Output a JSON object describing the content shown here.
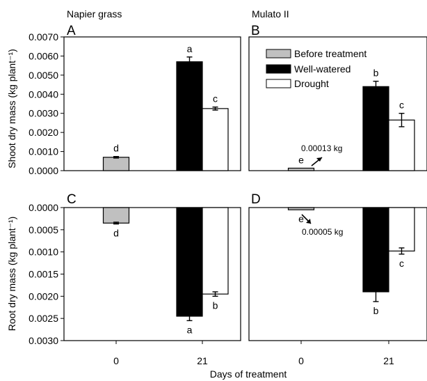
{
  "figure": {
    "x_axis_label": "Days of treatment",
    "y_axis_top_label": "Shoot dry mass (kg plant⁻¹)",
    "y_axis_bottom_label": "Root dry mass (kg plant⁻¹)",
    "column_titles": [
      "Napier grass",
      "Mulato II"
    ],
    "panel_letters": [
      "A",
      "B",
      "C",
      "D"
    ],
    "x_tick_labels": [
      "0",
      "21"
    ],
    "legend": [
      {
        "label": "Before treatment",
        "color": "#c0c0c0"
      },
      {
        "label": "Well-watered",
        "color": "#000000"
      },
      {
        "label": "Drought",
        "color": "#ffffff"
      }
    ],
    "annotation_b": "0.00013 kg",
    "annotation_d": "0.00005 kg"
  },
  "chart_data": [
    {
      "panel": "A",
      "type": "bar",
      "title": "Napier grass",
      "ylabel": "Shoot dry mass (kg plant⁻¹)",
      "xlabel": "",
      "ylim": [
        0,
        0.007
      ],
      "yticks": [
        "0.0000",
        "0.0010",
        "0.0020",
        "0.0030",
        "0.0040",
        "0.0050",
        "0.0060",
        "0.0070"
      ],
      "bars": [
        {
          "day": "0",
          "series": "Before treatment",
          "value": 0.0007,
          "error": 4e-05,
          "letter": "d"
        },
        {
          "day": "21",
          "series": "Well-watered",
          "value": 0.0057,
          "error": 0.00025,
          "letter": "a"
        },
        {
          "day": "21",
          "series": "Drought",
          "value": 0.00325,
          "error": 8e-05,
          "letter": "c"
        }
      ]
    },
    {
      "panel": "B",
      "type": "bar",
      "title": "Mulato II",
      "ylabel": "",
      "xlabel": "",
      "ylim": [
        0,
        0.007
      ],
      "bars": [
        {
          "day": "0",
          "series": "Before treatment",
          "value": 0.00013,
          "error": 0.0,
          "letter": "e"
        },
        {
          "day": "21",
          "series": "Well-watered",
          "value": 0.0044,
          "error": 0.00028,
          "letter": "b"
        },
        {
          "day": "21",
          "series": "Drought",
          "value": 0.00265,
          "error": 0.00035,
          "letter": "c"
        }
      ]
    },
    {
      "panel": "C",
      "type": "bar",
      "title": "",
      "ylabel": "Root dry mass (kg plant⁻¹)",
      "xlabel": "Days of treatment",
      "ylim": [
        0,
        0.003
      ],
      "inverted": true,
      "yticks": [
        "0.0000",
        "0.0005",
        "0.0010",
        "0.0015",
        "0.0020",
        "0.0025",
        "0.0030"
      ],
      "bars": [
        {
          "day": "0",
          "series": "Before treatment",
          "value": 0.00035,
          "error": 2e-05,
          "letter": "d"
        },
        {
          "day": "21",
          "series": "Well-watered",
          "value": 0.00245,
          "error": 0.0001,
          "letter": "a"
        },
        {
          "day": "21",
          "series": "Drought",
          "value": 0.00195,
          "error": 5e-05,
          "letter": "b"
        }
      ]
    },
    {
      "panel": "D",
      "type": "bar",
      "title": "",
      "ylabel": "",
      "xlabel": "Days of treatment",
      "ylim": [
        0,
        0.003
      ],
      "inverted": true,
      "bars": [
        {
          "day": "0",
          "series": "Before treatment",
          "value": 5e-05,
          "error": 0.0,
          "letter": "e"
        },
        {
          "day": "21",
          "series": "Well-watered",
          "value": 0.0019,
          "error": 0.00022,
          "letter": "b"
        },
        {
          "day": "21",
          "series": "Drought",
          "value": 0.00098,
          "error": 7e-05,
          "letter": "c"
        }
      ]
    }
  ]
}
